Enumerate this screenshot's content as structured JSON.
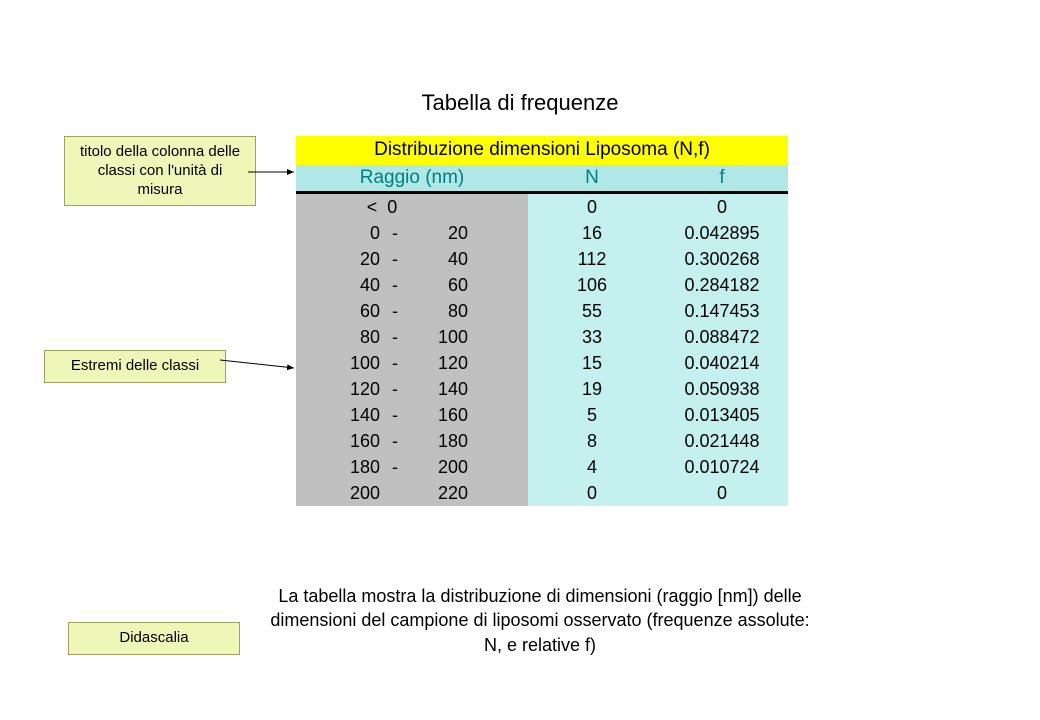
{
  "title": "Tabella di frequenze",
  "callouts": {
    "column_title": "titolo della colonna delle classi con l'unità di misura",
    "class_bounds": "Estremi delle classi",
    "caption_label": "Didascalia"
  },
  "table": {
    "title": "Distribuzione dimensioni Liposoma (N,f)",
    "columns": {
      "range": "Raggio (nm)",
      "n": "N",
      "f": "f"
    },
    "colors": {
      "title_bg": "#ffff00",
      "header_bg": "#b0e8e8",
      "header_fg": "#008080",
      "range_bg": "#c0c0c0",
      "data_bg": "#c4f0f0",
      "header_rule": "#000000",
      "text": "#000000"
    },
    "font_size_header": 19,
    "font_size_body": 18,
    "rows": [
      {
        "range_lo": null,
        "range_hi": 0,
        "range_label": "<  0",
        "n": 0,
        "f": "0"
      },
      {
        "range_lo": 0,
        "range_hi": 20,
        "n": 16,
        "f": "0.042895"
      },
      {
        "range_lo": 20,
        "range_hi": 40,
        "n": 112,
        "f": "0.300268"
      },
      {
        "range_lo": 40,
        "range_hi": 60,
        "n": 106,
        "f": "0.284182"
      },
      {
        "range_lo": 60,
        "range_hi": 80,
        "n": 55,
        "f": "0.147453"
      },
      {
        "range_lo": 80,
        "range_hi": 100,
        "n": 33,
        "f": "0.088472"
      },
      {
        "range_lo": 100,
        "range_hi": 120,
        "n": 15,
        "f": "0.040214"
      },
      {
        "range_lo": 120,
        "range_hi": 140,
        "n": 19,
        "f": "0.050938"
      },
      {
        "range_lo": 140,
        "range_hi": 160,
        "n": 5,
        "f": "0.013405"
      },
      {
        "range_lo": 160,
        "range_hi": 180,
        "n": 8,
        "f": "0.021448"
      },
      {
        "range_lo": 180,
        "range_hi": 200,
        "n": 4,
        "f": "0.010724"
      },
      {
        "range_lo": 200,
        "range_hi": 220,
        "dash": "",
        "n": 0,
        "f": "0"
      }
    ]
  },
  "caption": "La tabella mostra la distribuzione di dimensioni (raggio [nm]) delle dimensioni del campione di liposomi osservato (frequenze assolute: N, e relative f)",
  "arrows": {
    "stroke": "#000000",
    "stroke_width": 1
  }
}
